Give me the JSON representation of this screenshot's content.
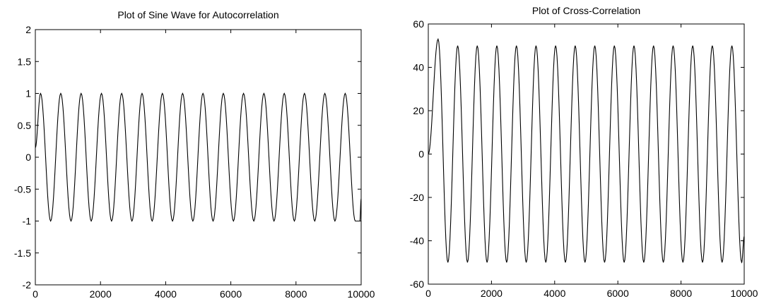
{
  "chart_data": [
    {
      "type": "line",
      "title": "Plot of Sine Wave for Autocorrelation",
      "xlabel": "",
      "ylabel": "",
      "xlim": [
        0,
        10000
      ],
      "ylim": [
        -2,
        2
      ],
      "xticks": [
        "0",
        "2000",
        "4000",
        "6000",
        "8000",
        "10000"
      ],
      "yticks": [
        "-2",
        "-1.5",
        "-1",
        "-0.5",
        "0",
        "0.5",
        "1",
        "1.5",
        "2"
      ],
      "grid": false,
      "series": [
        {
          "x": [
            0,
            160,
            470,
            780,
            1095,
            1405,
            1715,
            2030,
            2340,
            2650,
            2965,
            3275,
            3585,
            3900,
            4210,
            4520,
            4835,
            5145,
            5455,
            5770,
            6080,
            6390,
            6705,
            7015,
            7325,
            7640,
            7950,
            8260,
            8575,
            8885,
            9195,
            9510,
            9820,
            9960,
            10000
          ],
          "y": [
            0.15,
            1,
            -1,
            1,
            -1,
            1,
            -1,
            1,
            -1,
            1,
            -1,
            1,
            -1,
            1,
            -1,
            1,
            -1,
            1,
            -1,
            1,
            -1,
            1,
            -1,
            1,
            -1,
            1,
            -1,
            1,
            -1,
            1,
            -1,
            1,
            -1,
            -1,
            -0.65
          ]
        }
      ]
    },
    {
      "type": "line",
      "title": "Plot of Cross-Correlation",
      "xlabel": "",
      "ylabel": "",
      "xlim": [
        0,
        10000
      ],
      "ylim": [
        -60,
        60
      ],
      "xticks": [
        "0",
        "2000",
        "4000",
        "6000",
        "8000",
        "10000"
      ],
      "yticks": [
        "-60",
        "-40",
        "-20",
        "0",
        "20",
        "40",
        "60"
      ],
      "grid": false,
      "series": [
        {
          "x": [
            0,
            310,
            620,
            930,
            1240,
            1550,
            1860,
            2170,
            2480,
            2790,
            3100,
            3410,
            3720,
            4030,
            4340,
            4650,
            4960,
            5270,
            5580,
            5890,
            6200,
            6510,
            6820,
            7130,
            7440,
            7750,
            8060,
            8370,
            8680,
            8990,
            9300,
            9610,
            9920,
            10000
          ],
          "y": [
            0,
            53,
            -50,
            50,
            -50,
            50,
            -50,
            50,
            -50,
            50,
            -50,
            50,
            -50,
            50,
            -50,
            50,
            -50,
            50,
            -50,
            50,
            -50,
            50,
            -50,
            50,
            -50,
            50,
            -50,
            50,
            -50,
            50,
            -50,
            50,
            -50,
            -38
          ]
        }
      ]
    }
  ]
}
